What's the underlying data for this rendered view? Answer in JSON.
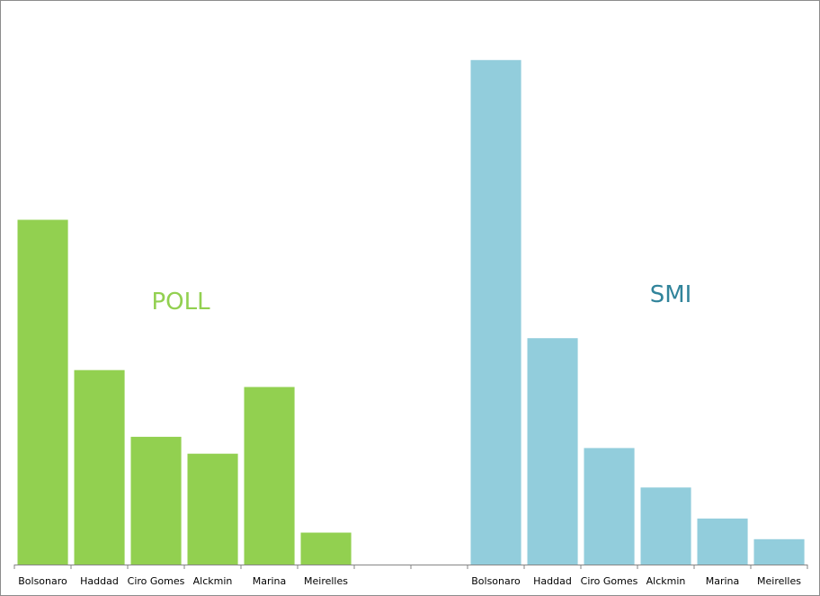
{
  "chart_data": {
    "type": "bar",
    "categories": [
      "Bolsonaro",
      "Haddad",
      "Ciro Gomes",
      "Alckmin",
      "Marina",
      "Meirelles",
      "",
      "",
      "Bolsonaro",
      "Haddad",
      "Ciro Gomes",
      "Alckmin",
      "Marina",
      "Meirelles"
    ],
    "series": [
      {
        "name": "POLL",
        "color": "#92d050",
        "values": [
          36.7,
          20.7,
          13.6,
          11.8,
          18.9,
          3.4,
          null,
          null,
          null,
          null,
          null,
          null,
          null,
          null
        ]
      },
      {
        "name": "SMI",
        "color": "#92cddc",
        "values": [
          null,
          null,
          null,
          null,
          null,
          null,
          null,
          null,
          53.7,
          24.1,
          12.4,
          8.2,
          4.9,
          2.7
        ]
      }
    ],
    "annotations": [
      {
        "text": "POLL",
        "color": "#92d050"
      },
      {
        "text": "SMI",
        "color": "#31849b"
      }
    ],
    "title": "",
    "xlabel": "",
    "ylabel": "",
    "ylim": [
      0,
      60
    ],
    "grid": false,
    "legend": "none"
  }
}
